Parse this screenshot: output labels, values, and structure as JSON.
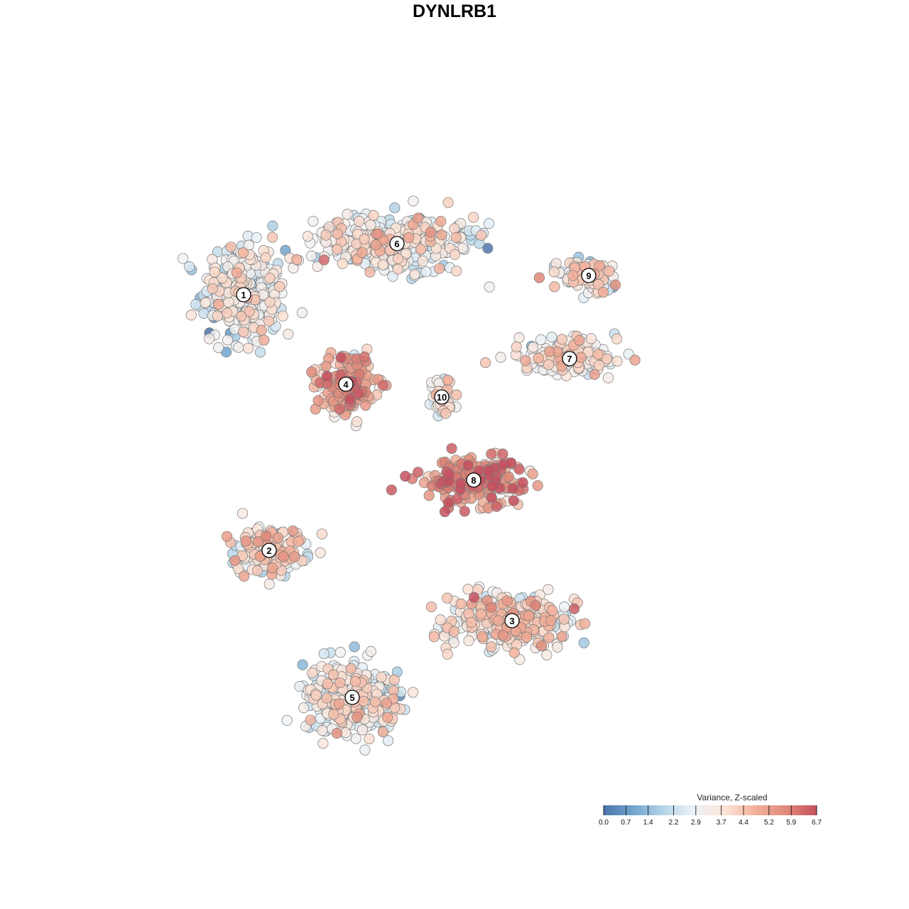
{
  "chart_data": {
    "type": "scatter",
    "title": "DYNLRB1",
    "xlabel": "",
    "ylabel": "",
    "axes_visible": false,
    "grid": false,
    "legend": {
      "title": "Variance, Z-scaled",
      "placement": "bottom-right",
      "ticks": [
        "0.0",
        "0.7",
        "1.4",
        "2.2",
        "2.9",
        "3.7",
        "4.4",
        "5.2",
        "5.9",
        "6.7"
      ],
      "range": [
        0.0,
        6.7
      ]
    },
    "color_scale": [
      "#4a73a8",
      "#74a7d0",
      "#b7d6e8",
      "#eef3f7",
      "#fbe3d6",
      "#f2b09a",
      "#e08a7a",
      "#c4505f"
    ],
    "clusters": [
      {
        "label": "1",
        "x": -33,
        "y": 25,
        "mean_value": 2.8
      },
      {
        "label": "2",
        "x": -29,
        "y": -15,
        "mean_value": 3.6
      },
      {
        "label": "3",
        "x": 9,
        "y": -26,
        "mean_value": 3.6
      },
      {
        "label": "4",
        "x": -17,
        "y": 11,
        "mean_value": 4.9
      },
      {
        "label": "5",
        "x": -16,
        "y": -38,
        "mean_value": 3.0
      },
      {
        "label": "6",
        "x": -9,
        "y": 33,
        "mean_value": 3.0
      },
      {
        "label": "7",
        "x": 18,
        "y": 15,
        "mean_value": 3.3
      },
      {
        "label": "8",
        "x": 3,
        "y": -4,
        "mean_value": 5.4
      },
      {
        "label": "9",
        "x": 21,
        "y": 28,
        "mean_value": 3.4
      },
      {
        "label": "10",
        "x": -2,
        "y": 9,
        "mean_value": 3.2
      }
    ]
  }
}
